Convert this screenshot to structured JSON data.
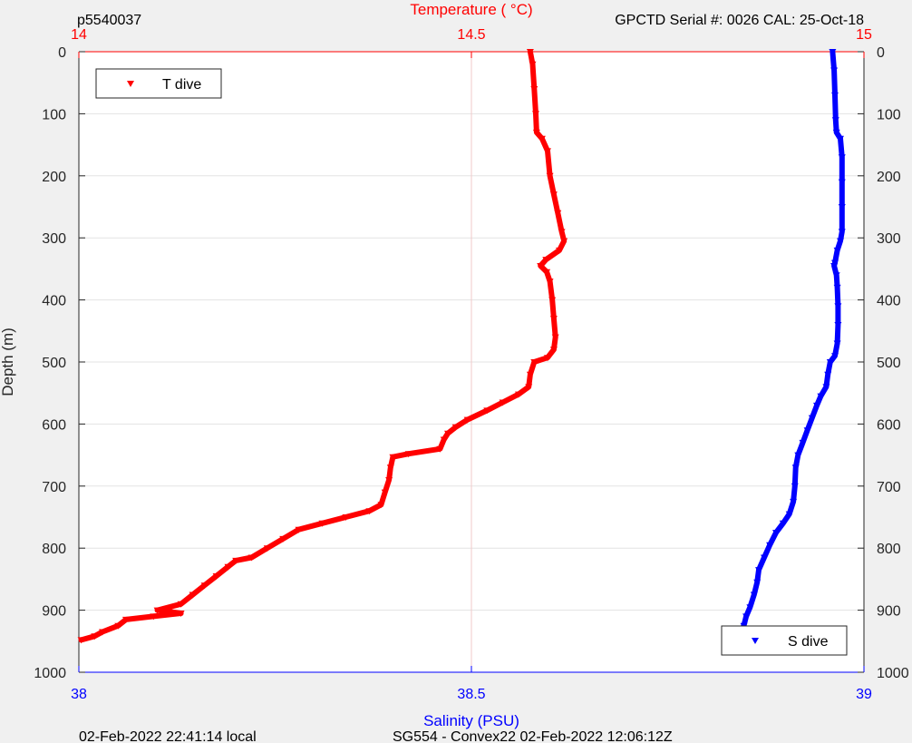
{
  "header": {
    "left": "p5540037",
    "right": "GPCTD Serial #: 0026 CAL: 25-Oct-18"
  },
  "footer": {
    "left": "02-Feb-2022 22:41:14 local",
    "center": "SG554 - Convex22 02-Feb-2022 12:06:12Z"
  },
  "chart_data": {
    "type": "scatter",
    "title": "",
    "ylabel": "Depth (m)",
    "ylim": [
      0,
      1000
    ],
    "y_reversed": true,
    "yticks": [
      "0",
      "100",
      "200",
      "300",
      "400",
      "500",
      "600",
      "700",
      "800",
      "900",
      "1000"
    ],
    "grid": true,
    "temperature_axis": {
      "label": "Temperature (    °C)",
      "position": "top",
      "lim": [
        14,
        15
      ],
      "ticks": [
        "14",
        "14.5",
        "15"
      ],
      "color": "#ff0000"
    },
    "salinity_axis": {
      "label": "Salinity (PSU)",
      "position": "bottom",
      "lim": [
        38,
        39
      ],
      "ticks": [
        "38",
        "38.5",
        "39"
      ],
      "color": "#0000ff"
    },
    "series": [
      {
        "name": "T dive",
        "axis": "temperature",
        "color": "#ff0000",
        "legend_position": "top-left",
        "points": [
          [
            14.575,
            0
          ],
          [
            14.578,
            20
          ],
          [
            14.58,
            60
          ],
          [
            14.582,
            100
          ],
          [
            14.583,
            130
          ],
          [
            14.59,
            140
          ],
          [
            14.597,
            160
          ],
          [
            14.6,
            200
          ],
          [
            14.605,
            230
          ],
          [
            14.61,
            260
          ],
          [
            14.615,
            290
          ],
          [
            14.618,
            305
          ],
          [
            14.612,
            320
          ],
          [
            14.595,
            335
          ],
          [
            14.588,
            345
          ],
          [
            14.596,
            355
          ],
          [
            14.6,
            370
          ],
          [
            14.603,
            400
          ],
          [
            14.605,
            430
          ],
          [
            14.607,
            460
          ],
          [
            14.605,
            480
          ],
          [
            14.597,
            493
          ],
          [
            14.58,
            500
          ],
          [
            14.575,
            520
          ],
          [
            14.573,
            540
          ],
          [
            14.56,
            552
          ],
          [
            14.54,
            565
          ],
          [
            14.52,
            578
          ],
          [
            14.495,
            593
          ],
          [
            14.48,
            605
          ],
          [
            14.47,
            615
          ],
          [
            14.465,
            625
          ],
          [
            14.46,
            640
          ],
          [
            14.42,
            648
          ],
          [
            14.4,
            653
          ],
          [
            14.397,
            670
          ],
          [
            14.395,
            690
          ],
          [
            14.39,
            710
          ],
          [
            14.385,
            730
          ],
          [
            14.37,
            740
          ],
          [
            14.34,
            750
          ],
          [
            14.31,
            760
          ],
          [
            14.28,
            770
          ],
          [
            14.26,
            785
          ],
          [
            14.24,
            800
          ],
          [
            14.22,
            815
          ],
          [
            14.2,
            820
          ],
          [
            14.19,
            830
          ],
          [
            14.175,
            845
          ],
          [
            14.16,
            860
          ],
          [
            14.145,
            875
          ],
          [
            14.13,
            890
          ],
          [
            14.1,
            900
          ],
          [
            14.13,
            905
          ],
          [
            14.095,
            910
          ],
          [
            14.06,
            915
          ],
          [
            14.05,
            925
          ],
          [
            14.03,
            935
          ],
          [
            14.02,
            942
          ],
          [
            14.003,
            948
          ]
        ]
      },
      {
        "name": "S dive",
        "axis": "salinity",
        "color": "#0000ff",
        "legend_position": "bottom-right",
        "points": [
          [
            38.96,
            0
          ],
          [
            38.962,
            30
          ],
          [
            38.963,
            70
          ],
          [
            38.964,
            110
          ],
          [
            38.965,
            130
          ],
          [
            38.97,
            140
          ],
          [
            38.972,
            170
          ],
          [
            38.972,
            210
          ],
          [
            38.972,
            250
          ],
          [
            38.972,
            290
          ],
          [
            38.97,
            305
          ],
          [
            38.966,
            320
          ],
          [
            38.963,
            340
          ],
          [
            38.962,
            345
          ],
          [
            38.965,
            360
          ],
          [
            38.966,
            380
          ],
          [
            38.967,
            410
          ],
          [
            38.967,
            440
          ],
          [
            38.966,
            470
          ],
          [
            38.963,
            490
          ],
          [
            38.957,
            500
          ],
          [
            38.954,
            520
          ],
          [
            38.952,
            540
          ],
          [
            38.945,
            555
          ],
          [
            38.94,
            570
          ],
          [
            38.934,
            590
          ],
          [
            38.928,
            610
          ],
          [
            38.922,
            630
          ],
          [
            38.916,
            650
          ],
          [
            38.913,
            670
          ],
          [
            38.912,
            700
          ],
          [
            38.91,
            725
          ],
          [
            38.905,
            745
          ],
          [
            38.897,
            760
          ],
          [
            38.888,
            775
          ],
          [
            38.88,
            795
          ],
          [
            38.873,
            815
          ],
          [
            38.866,
            835
          ],
          [
            38.864,
            855
          ],
          [
            38.86,
            875
          ],
          [
            38.855,
            895
          ],
          [
            38.85,
            910
          ],
          [
            38.847,
            925
          ],
          [
            38.842,
            937
          ],
          [
            38.838,
            945
          ]
        ]
      }
    ]
  }
}
